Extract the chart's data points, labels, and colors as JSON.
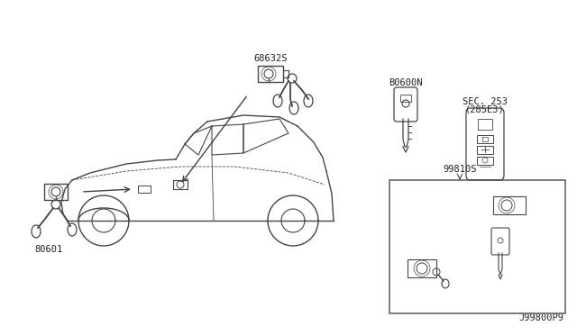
{
  "bg_color": "#ffffff",
  "labels": {
    "top_lock": "68632S",
    "door_lock": "80601",
    "blank_key": "B0600N",
    "smart_key_line1": "SEC. 253",
    "smart_key_line2": "(285E3)",
    "key_set": "99810S",
    "diagram_id": "J99800P9"
  },
  "line_color": "#444444",
  "text_color": "#222222",
  "fig_width": 6.4,
  "fig_height": 3.72
}
